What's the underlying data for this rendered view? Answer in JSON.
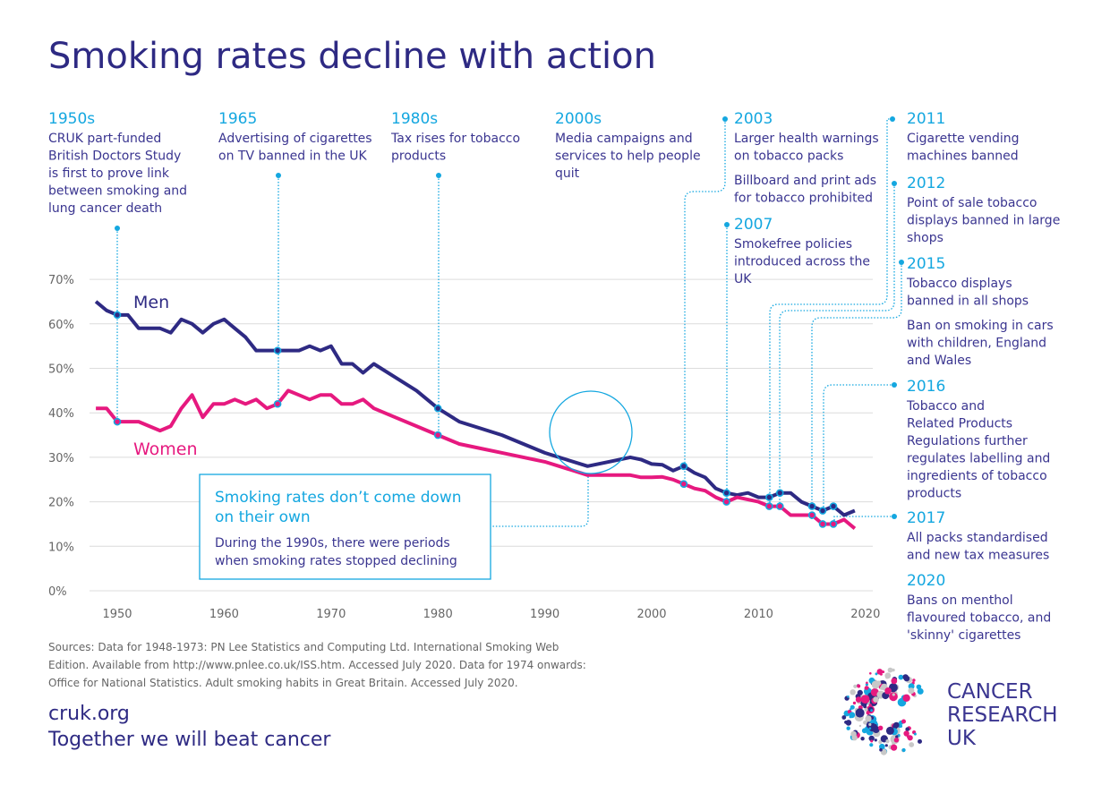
{
  "title": "Smoking rates decline with action",
  "chart_data": {
    "type": "line",
    "title": "Smoking rates decline with action",
    "xlabel": "",
    "ylabel": "",
    "xlim": [
      1948,
      2020
    ],
    "ylim": [
      0,
      70
    ],
    "x_ticks": [
      "1950",
      "1960",
      "1970",
      "1980",
      "1990",
      "2000",
      "2010",
      "2020"
    ],
    "y_ticks": [
      "0%",
      "10%",
      "20%",
      "30%",
      "40%",
      "50%",
      "60%",
      "70%"
    ],
    "grid": "horizontal",
    "series": [
      {
        "name": "Men",
        "color": "#2e2a83",
        "x": [
          1948,
          1949,
          1950,
          1951,
          1952,
          1953,
          1954,
          1955,
          1956,
          1957,
          1958,
          1959,
          1960,
          1961,
          1962,
          1963,
          1964,
          1965,
          1966,
          1967,
          1968,
          1969,
          1970,
          1971,
          1972,
          1973,
          1974,
          1976,
          1978,
          1980,
          1982,
          1984,
          1986,
          1988,
          1990,
          1992,
          1994,
          1996,
          1998,
          1999,
          2000,
          2001,
          2002,
          2003,
          2004,
          2005,
          2006,
          2007,
          2008,
          2009,
          2010,
          2011,
          2012,
          2013,
          2014,
          2015,
          2016,
          2017,
          2018,
          2019
        ],
        "y": [
          65,
          63,
          62,
          62,
          59,
          59,
          59,
          58,
          61,
          60,
          58,
          60,
          61,
          59,
          57,
          54,
          54,
          54,
          54,
          54,
          55,
          54,
          55,
          51,
          51,
          49,
          51,
          48,
          45,
          41,
          38,
          36.5,
          35,
          33,
          31,
          29.5,
          28,
          29,
          30,
          29.5,
          28.5,
          28.3,
          27,
          28,
          26.5,
          25.5,
          23,
          22,
          21.5,
          22,
          21,
          21,
          22,
          22,
          20,
          19,
          18,
          19,
          17,
          18
        ]
      },
      {
        "name": "Women",
        "color": "#e6197f",
        "x": [
          1948,
          1949,
          1950,
          1951,
          1952,
          1953,
          1954,
          1955,
          1956,
          1957,
          1958,
          1959,
          1960,
          1961,
          1962,
          1963,
          1964,
          1965,
          1966,
          1967,
          1968,
          1969,
          1970,
          1971,
          1972,
          1973,
          1974,
          1976,
          1978,
          1980,
          1982,
          1984,
          1986,
          1988,
          1990,
          1992,
          1994,
          1996,
          1998,
          1999,
          2000,
          2001,
          2002,
          2003,
          2004,
          2005,
          2006,
          2007,
          2008,
          2009,
          2010,
          2011,
          2012,
          2013,
          2014,
          2015,
          2016,
          2017,
          2018,
          2019
        ],
        "y": [
          41,
          41,
          38,
          38,
          38,
          37,
          36,
          37,
          41,
          44,
          39,
          42,
          42,
          43,
          42,
          43,
          41,
          42,
          45,
          44,
          43,
          44,
          44,
          42,
          42,
          43,
          41,
          39,
          37,
          35,
          33,
          32,
          31,
          30,
          29,
          27.5,
          26,
          26,
          26,
          25.5,
          25.5,
          25.6,
          25,
          24,
          23,
          22.5,
          21,
          20,
          21,
          20.5,
          20,
          19,
          19,
          17,
          17,
          17,
          15,
          15,
          16,
          14
        ]
      }
    ],
    "annotations": [
      {
        "year": "1950s",
        "text": [
          "CRUK part-funded",
          "British Doctors Study",
          "is first to prove link",
          "between smoking and",
          "lung cancer death"
        ]
      },
      {
        "year": "1965",
        "text": [
          "Advertising of cigarettes",
          "on TV banned in the UK"
        ]
      },
      {
        "year": "1980s",
        "text": [
          "Tax rises for tobacco",
          "products"
        ]
      },
      {
        "year": "2000s",
        "text": [
          "Media campaigns and",
          "services to help people",
          "quit"
        ]
      },
      {
        "year": "2003",
        "text": [
          "Larger health warnings",
          "on tobacco packs",
          "Billboard and print ads",
          "for tobacco prohibited"
        ]
      },
      {
        "year": "2007",
        "text": [
          "Smokefree policies",
          "introduced across the",
          "UK"
        ]
      },
      {
        "year": "2011",
        "text": [
          "Cigarette vending",
          "machines banned"
        ]
      },
      {
        "year": "2012",
        "text": [
          "Point of sale tobacco",
          "displays banned in large",
          "shops"
        ]
      },
      {
        "year": "2015",
        "text": [
          "Tobacco  displays",
          "banned in all shops",
          "Ban on smoking in cars",
          "with children, England",
          "and Wales"
        ]
      },
      {
        "year": "2016",
        "text": [
          "Tobacco and",
          "Related Products",
          "Regulations further",
          "regulates labelling and",
          "ingredients of tobacco",
          "products"
        ]
      },
      {
        "year": "2017",
        "text": [
          "All packs standardised",
          "and new tax measures"
        ]
      },
      {
        "year": "2020",
        "text": [
          "Bans on menthol",
          "flavoured tobacco, and",
          "'skinny' cigarettes"
        ]
      }
    ],
    "callout": {
      "title": [
        "Smoking rates don’t come down",
        "on their own"
      ],
      "text": [
        "During the 1990s, there were periods",
        "when smoking rates stopped declining"
      ]
    }
  },
  "sources": [
    "Sources: Data for 1948-1973: PN Lee Statistics and Computing Ltd. International Smoking Web",
    "Edition. Available from http://www.pnlee.co.uk/ISS.htm. Accessed July 2020. Data for 1974 onwards:",
    "Office for National Statistics. Adult smoking habits in Great Britain. Accessed July 2020."
  ],
  "footer": {
    "url": "cruk.org",
    "tagline": "Together we will beat cancer"
  },
  "logo": {
    "lines": [
      "CANCER",
      "RESEARCH",
      "UK"
    ]
  },
  "colors": {
    "men": "#2e2a83",
    "women": "#e6197f",
    "accent": "#14a7e0"
  }
}
